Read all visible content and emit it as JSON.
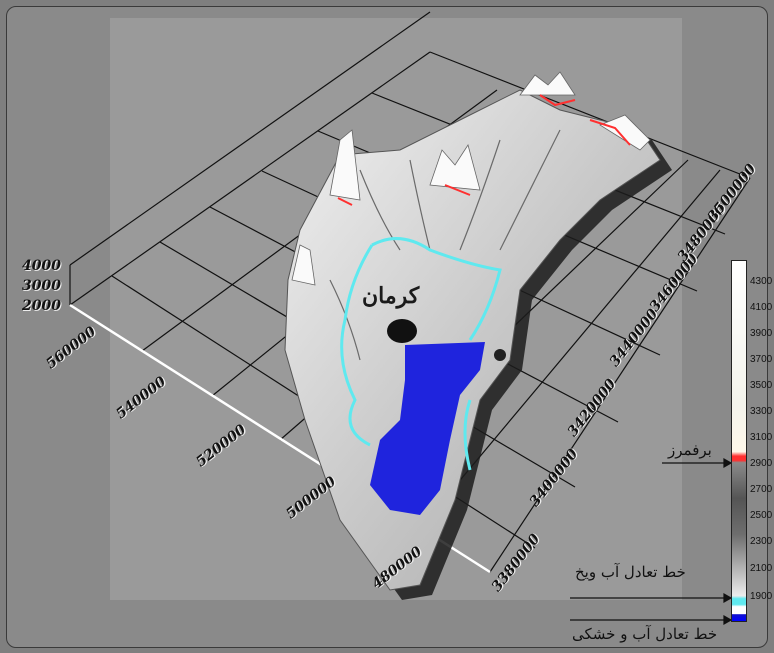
{
  "map": {
    "city_label": "کرمان",
    "z_axis_labels": [
      "4000",
      "3000",
      "2000"
    ],
    "x_axis_labels": [
      "560000",
      "540000",
      "520000",
      "500000",
      "480000"
    ],
    "y_axis_labels": [
      "3380000",
      "3400000",
      "3420000",
      "3440000",
      "3460000",
      "3480000",
      "3500000"
    ]
  },
  "legend": {
    "ticks": [
      "4300",
      "4100",
      "3900",
      "3700",
      "3500",
      "3300",
      "3100",
      "2900",
      "2700",
      "2500",
      "2300",
      "2100",
      "1900"
    ],
    "snowline_label": "برفمرز",
    "snow_water_balance_label": "خط تعادل آب ویخ",
    "water_land_balance_label": "خط تعادل آب و خشکی",
    "colors": {
      "snowline": "#ff3030",
      "snow_water_balance": "#5fe9ef",
      "water_land_balance": "#0000ff"
    }
  }
}
